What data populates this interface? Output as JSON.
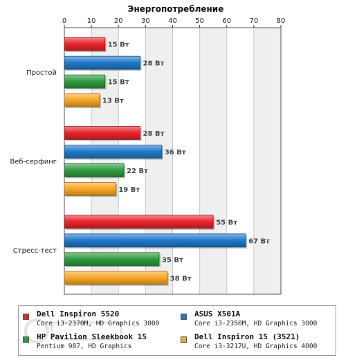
{
  "chart_data": {
    "type": "bar",
    "orientation": "horizontal",
    "title": "Энергопотребление",
    "xlim": [
      0,
      80
    ],
    "xticks": [
      0,
      10,
      20,
      30,
      40,
      50,
      60,
      70,
      80
    ],
    "grid": true,
    "value_suffix": " Вт",
    "categories": [
      "Простой",
      "Веб-серфинг",
      "Стресс-тест"
    ],
    "series": [
      {
        "name": "Dell Inspiron 5520",
        "subtitle": "Core i3-2370M, HD Graphics 3000",
        "color": "#e8232a",
        "values": [
          15,
          28,
          55
        ]
      },
      {
        "name": "ASUS X501A",
        "subtitle": "Core i3-2350M, HD Graphics 3000",
        "color": "#1f78c8",
        "values": [
          28,
          36,
          67
        ]
      },
      {
        "name": "HP Pavilion Sleekbook 15",
        "subtitle": "Pentium 987, HD Graphics",
        "color": "#2e9a3e",
        "values": [
          15,
          22,
          35
        ]
      },
      {
        "name": "Dell Inspiron 15 (3521)",
        "subtitle": "Core i3-3217U, HD Graphics 4000",
        "color": "#f5a623",
        "values": [
          13,
          19,
          38
        ]
      }
    ],
    "legend_position": "bottom"
  }
}
